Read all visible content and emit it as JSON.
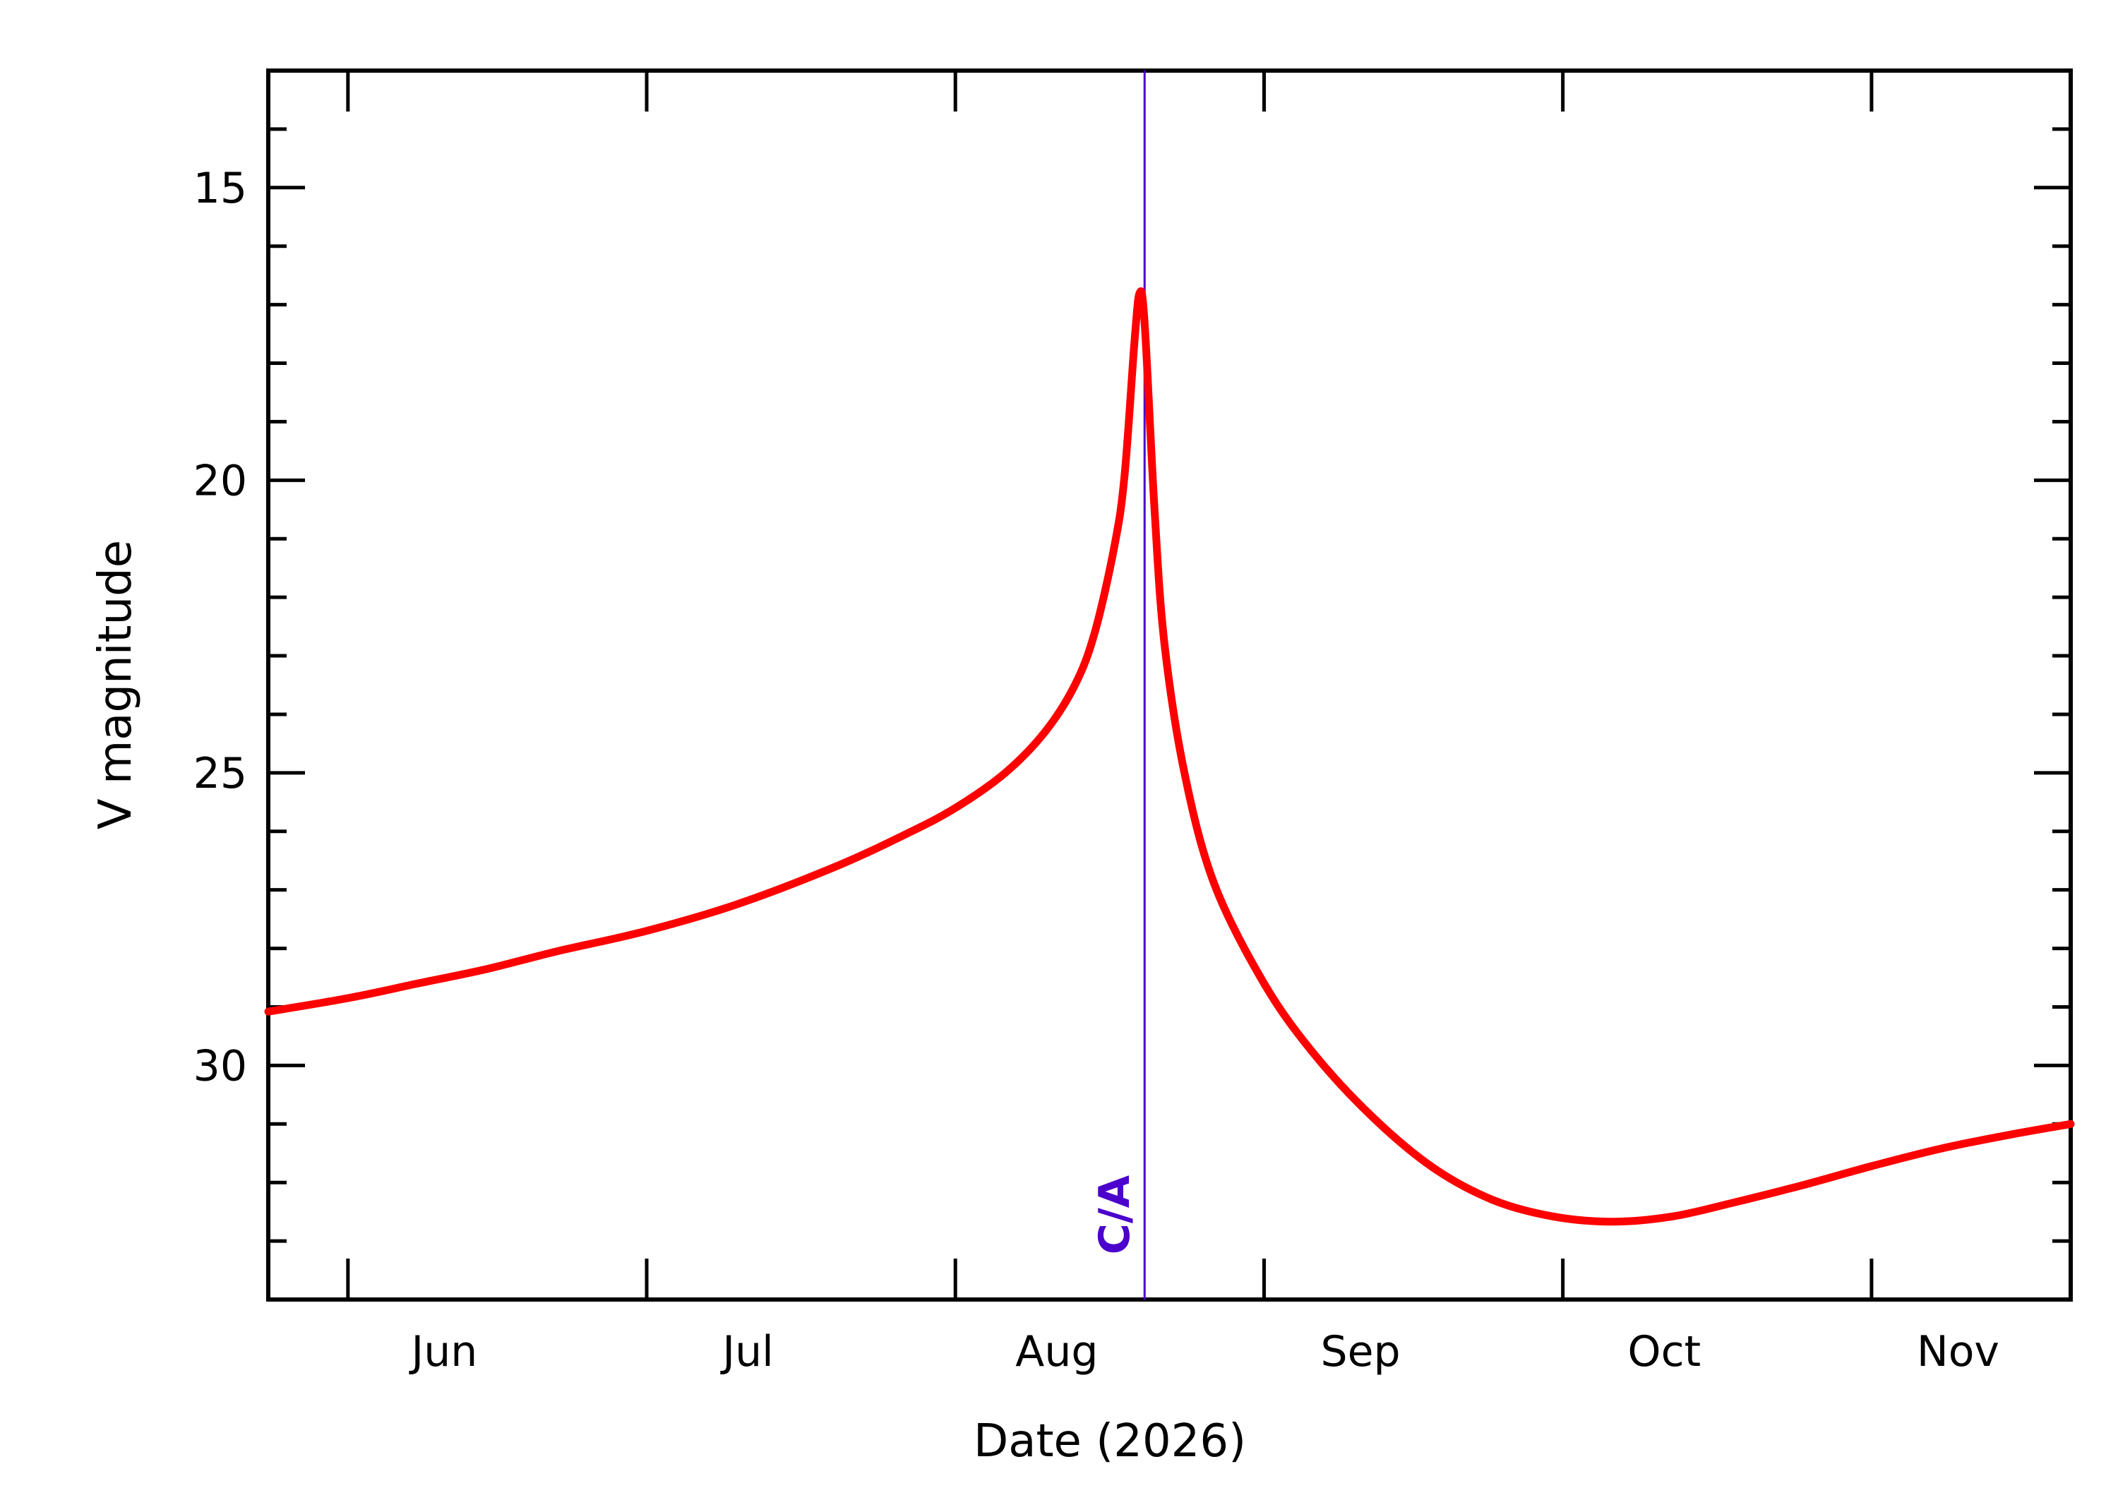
{
  "chart_data": {
    "type": "line",
    "title": "",
    "xlabel": "Date (2026)",
    "ylabel": "V magnitude",
    "x_range": [
      "2026-05-24",
      "2026-11-21"
    ],
    "ylim": [
      13,
      34
    ],
    "y_inverted": true,
    "grid": false,
    "x_ticks": [
      {
        "date": "2026-06-01",
        "label": "Jun"
      },
      {
        "date": "2026-07-01",
        "label": "Jul"
      },
      {
        "date": "2026-08-01",
        "label": "Aug"
      },
      {
        "date": "2026-09-01",
        "label": "Sep"
      },
      {
        "date": "2026-10-01",
        "label": "Oct"
      },
      {
        "date": "2026-11-01",
        "label": "Nov"
      }
    ],
    "y_ticks": [
      15,
      20,
      25,
      30
    ],
    "annotations": [
      {
        "label": "C/A",
        "date": "2026-08-20",
        "color": "#4B00CC"
      }
    ],
    "series": [
      {
        "color": "#ff0000",
        "points": [
          {
            "x": "2026-05-24",
            "y": 29.08
          },
          {
            "x": "2026-06-01",
            "y": 28.85
          },
          {
            "x": "2026-06-08",
            "y": 28.6
          },
          {
            "x": "2026-06-15",
            "y": 28.35
          },
          {
            "x": "2026-06-22",
            "y": 28.05
          },
          {
            "x": "2026-07-01",
            "y": 27.7
          },
          {
            "x": "2026-07-10",
            "y": 27.25
          },
          {
            "x": "2026-07-20",
            "y": 26.6
          },
          {
            "x": "2026-07-27",
            "y": 26.05
          },
          {
            "x": "2026-08-01",
            "y": 25.6
          },
          {
            "x": "2026-08-06",
            "y": 25.0
          },
          {
            "x": "2026-08-10",
            "y": 24.3
          },
          {
            "x": "2026-08-13",
            "y": 23.5
          },
          {
            "x": "2026-08-15",
            "y": 22.6
          },
          {
            "x": "2026-08-17",
            "y": 21.1
          },
          {
            "x": "2026-08-18",
            "y": 19.9
          },
          {
            "x": "2026-08-19",
            "y": 17.6
          },
          {
            "x": "2026-08-19T12:00",
            "y": 16.8
          },
          {
            "x": "2026-08-20",
            "y": 17.3
          },
          {
            "x": "2026-08-21",
            "y": 20.5
          },
          {
            "x": "2026-08-22",
            "y": 22.8
          },
          {
            "x": "2026-08-24",
            "y": 25.0
          },
          {
            "x": "2026-08-27",
            "y": 26.9
          },
          {
            "x": "2026-09-01",
            "y": 28.6
          },
          {
            "x": "2026-09-06",
            "y": 29.8
          },
          {
            "x": "2026-09-12",
            "y": 30.9
          },
          {
            "x": "2026-09-18",
            "y": 31.75
          },
          {
            "x": "2026-09-24",
            "y": 32.3
          },
          {
            "x": "2026-09-30",
            "y": 32.58
          },
          {
            "x": "2026-10-06",
            "y": 32.67
          },
          {
            "x": "2026-10-12",
            "y": 32.58
          },
          {
            "x": "2026-10-18",
            "y": 32.35
          },
          {
            "x": "2026-10-25",
            "y": 32.05
          },
          {
            "x": "2026-11-01",
            "y": 31.72
          },
          {
            "x": "2026-11-08",
            "y": 31.42
          },
          {
            "x": "2026-11-15",
            "y": 31.18
          },
          {
            "x": "2026-11-21",
            "y": 31.0
          }
        ]
      }
    ]
  }
}
